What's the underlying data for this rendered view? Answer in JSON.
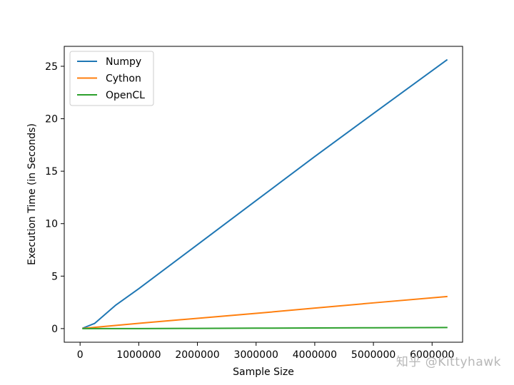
{
  "chart_data": {
    "type": "line",
    "xlabel": "Sample Size",
    "ylabel": "Execution Time (in Seconds)",
    "xlim": [
      -270000,
      6520000
    ],
    "ylim": [
      -1.3,
      26.9
    ],
    "xticks": [
      0,
      1000000,
      2000000,
      3000000,
      4000000,
      5000000,
      6000000
    ],
    "xtick_labels": [
      "0",
      "1000000",
      "2000000",
      "3000000",
      "4000000",
      "5000000",
      "6000000"
    ],
    "yticks": [
      0,
      5,
      10,
      15,
      20,
      25
    ],
    "ytick_labels": [
      "0",
      "5",
      "10",
      "15",
      "20",
      "25"
    ],
    "grid": false,
    "legend_position": "top-left",
    "series": [
      {
        "name": "Numpy",
        "color": "#1f77b4",
        "x": [
          50000,
          250000,
          600000,
          1000000,
          2000000,
          3000000,
          4000000,
          5000000,
          6250000
        ],
        "y": [
          0.05,
          0.5,
          2.2,
          3.8,
          8.0,
          12.2,
          16.4,
          20.5,
          25.6
        ]
      },
      {
        "name": "Cython",
        "color": "#ff7f0e",
        "x": [
          50000,
          1000000,
          2000000,
          3000000,
          4000000,
          5000000,
          6250000
        ],
        "y": [
          0.02,
          0.5,
          0.98,
          1.45,
          1.95,
          2.45,
          3.05
        ]
      },
      {
        "name": "OpenCL",
        "color": "#2ca02c",
        "x": [
          50000,
          1000000,
          2000000,
          3000000,
          4000000,
          5000000,
          6250000
        ],
        "y": [
          0.0,
          0.0,
          0.02,
          0.04,
          0.06,
          0.08,
          0.1
        ]
      }
    ]
  },
  "watermark": "知乎 @Kittyhawk"
}
